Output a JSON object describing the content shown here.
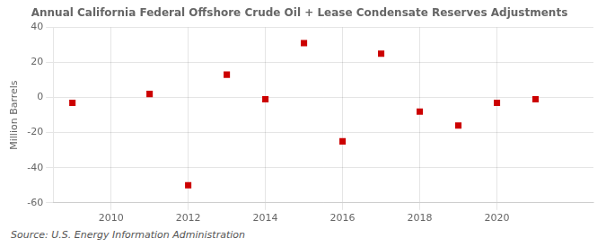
{
  "chart_data": {
    "type": "scatter",
    "title": "Annual California Federal Offshore Crude Oil + Lease Condensate Reserves Adjustments",
    "y_label": "Million Barrels",
    "annotations": [
      "Source: U.S. Energy Information Administration"
    ],
    "x": [
      2009,
      2011,
      2012,
      2013,
      2014,
      2015,
      2016,
      2017,
      2018,
      2019,
      2020,
      2021
    ],
    "values": [
      -3,
      2,
      -50,
      13,
      -1,
      31,
      -25,
      25,
      -8,
      -16,
      -3,
      -1
    ],
    "color": "#cc0000",
    "marker": "square",
    "xlim": [
      2008.5,
      2022.5
    ],
    "ylim": [
      -60,
      40
    ],
    "xticks": [
      2010,
      2012,
      2014,
      2016,
      2018,
      2020
    ],
    "yticks": [
      -60,
      -40,
      -20,
      0,
      20,
      40
    ],
    "grid": true
  }
}
